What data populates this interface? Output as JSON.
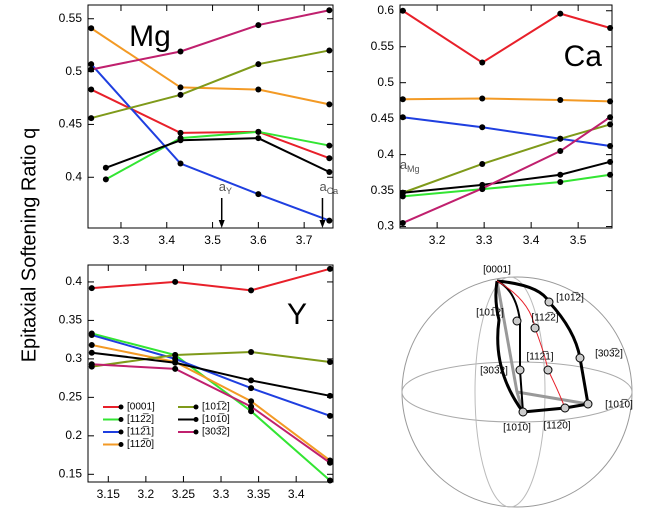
{
  "figure": {
    "ylabel": "Epitaxial  Softening Ratio q"
  },
  "chart_data": [
    {
      "type": "line",
      "label": "Mg",
      "xlim": [
        3.228,
        3.763
      ],
      "ylim": [
        0.352,
        0.563
      ],
      "xticks": [
        3.3,
        3.4,
        3.5,
        3.6,
        3.7
      ],
      "yticks": [
        0.4,
        0.45,
        0.5,
        0.55
      ],
      "legend": false,
      "annotations": [
        {
          "text": "a",
          "sub": "Y",
          "x": 3.52,
          "arrow": true
        },
        {
          "text": "a",
          "sub": "Ca",
          "x": 3.74,
          "arrow": true
        }
      ],
      "series": [
        {
          "name": "[0001]",
          "color": "#e8202a",
          "x": [
            3.235,
            3.43,
            3.6,
            3.755
          ],
          "values": [
            0.483,
            0.442,
            0.443,
            0.418
          ]
        },
        {
          "name": "[112̅2]",
          "color": "#33e533",
          "x": [
            3.267,
            3.43,
            3.6,
            3.755
          ],
          "values": [
            0.398,
            0.437,
            0.443,
            0.43
          ]
        },
        {
          "name": "[112̅1]",
          "color": "#1f3fe0",
          "x": [
            3.235,
            3.43,
            3.6,
            3.755
          ],
          "values": [
            0.507,
            0.413,
            0.384,
            0.359
          ]
        },
        {
          "name": "[112̅0]",
          "color": "#f39a25",
          "x": [
            3.235,
            3.43,
            3.6,
            3.755
          ],
          "values": [
            0.541,
            0.485,
            0.483,
            0.469
          ]
        },
        {
          "name": "[101̅2]",
          "color": "#7f9a1a",
          "x": [
            3.235,
            3.43,
            3.6,
            3.755
          ],
          "values": [
            0.456,
            0.478,
            0.507,
            0.52
          ]
        },
        {
          "name": "[101̅0]",
          "color": "#000000",
          "x": [
            3.267,
            3.43,
            3.6,
            3.755
          ],
          "values": [
            0.409,
            0.435,
            0.437,
            0.405
          ]
        },
        {
          "name": "[303̅2]",
          "color": "#c0206e",
          "x": [
            3.235,
            3.43,
            3.6,
            3.755
          ],
          "values": [
            0.502,
            0.519,
            0.544,
            0.558
          ]
        }
      ]
    },
    {
      "type": "line",
      "label": "Ca",
      "xlim": [
        3.121,
        3.572
      ],
      "ylim": [
        0.298,
        0.608
      ],
      "xticks": [
        3.2,
        3.3,
        3.4,
        3.5
      ],
      "yticks": [
        0.3,
        0.35,
        0.4,
        0.45,
        0.5,
        0.55,
        0.6
      ],
      "legend": false,
      "annotations": [
        {
          "text": "a",
          "sub": "Mg",
          "x": 3.127,
          "arrow": false
        }
      ],
      "series": [
        {
          "name": "[0001]",
          "color": "#e8202a",
          "x": [
            3.127,
            3.296,
            3.462,
            3.568
          ],
          "values": [
            0.6,
            0.528,
            0.596,
            0.576
          ]
        },
        {
          "name": "[112̅2]",
          "color": "#33e533",
          "x": [
            3.127,
            3.296,
            3.462,
            3.568
          ],
          "values": [
            0.342,
            0.352,
            0.362,
            0.372
          ]
        },
        {
          "name": "[112̅1]",
          "color": "#1f3fe0",
          "x": [
            3.127,
            3.296,
            3.462,
            3.568
          ],
          "values": [
            0.452,
            0.438,
            0.422,
            0.412
          ]
        },
        {
          "name": "[112̅0]",
          "color": "#f39a25",
          "x": [
            3.127,
            3.296,
            3.462,
            3.568
          ],
          "values": [
            0.477,
            0.478,
            0.476,
            0.474
          ]
        },
        {
          "name": "[101̅2]",
          "color": "#7f9a1a",
          "x": [
            3.127,
            3.296,
            3.462,
            3.568
          ],
          "values": [
            0.347,
            0.387,
            0.422,
            0.442
          ]
        },
        {
          "name": "[101̅0]",
          "color": "#000000",
          "x": [
            3.127,
            3.296,
            3.462,
            3.568
          ],
          "values": [
            0.347,
            0.358,
            0.372,
            0.39
          ]
        },
        {
          "name": "[303̅2]",
          "color": "#c0206e",
          "x": [
            3.127,
            3.296,
            3.462,
            3.568
          ],
          "values": [
            0.305,
            0.353,
            0.405,
            0.452
          ]
        }
      ]
    },
    {
      "type": "line",
      "label": "Y",
      "xlim": [
        3.123,
        3.449
      ],
      "ylim": [
        0.14,
        0.422
      ],
      "xticks": [
        3.15,
        3.2,
        3.25,
        3.3,
        3.35,
        3.4
      ],
      "yticks": [
        0.15,
        0.2,
        0.25,
        0.3,
        0.35,
        0.4
      ],
      "legend": true,
      "annotations": [],
      "series": [
        {
          "name": "[0001]",
          "color": "#e8202a",
          "x": [
            3.128,
            3.239,
            3.34,
            3.445
          ],
          "values": [
            0.392,
            0.4,
            0.389,
            0.417
          ]
        },
        {
          "name": "[112̅2]",
          "color": "#33e533",
          "x": [
            3.128,
            3.239,
            3.34,
            3.445
          ],
          "values": [
            0.333,
            0.305,
            0.232,
            0.142
          ]
        },
        {
          "name": "[112̅1]",
          "color": "#1f3fe0",
          "x": [
            3.128,
            3.239,
            3.34,
            3.445
          ],
          "values": [
            0.331,
            0.3,
            0.262,
            0.226
          ]
        },
        {
          "name": "[112̅0]",
          "color": "#f39a25",
          "x": [
            3.128,
            3.239,
            3.34,
            3.445
          ],
          "values": [
            0.318,
            0.296,
            0.245,
            0.168
          ]
        },
        {
          "name": "[101̅2]",
          "color": "#7f9a1a",
          "x": [
            3.128,
            3.239,
            3.34,
            3.445
          ],
          "values": [
            0.29,
            0.305,
            0.309,
            0.296
          ]
        },
        {
          "name": "[101̅0]",
          "color": "#000000",
          "x": [
            3.128,
            3.239,
            3.34,
            3.445
          ],
          "values": [
            0.308,
            0.295,
            0.272,
            0.252
          ]
        },
        {
          "name": "[303̅2]",
          "color": "#c0206e",
          "x": [
            3.128,
            3.239,
            3.34,
            3.445
          ],
          "values": [
            0.293,
            0.287,
            0.238,
            0.165
          ]
        }
      ]
    }
  ],
  "diagram": {
    "labels": [
      "[0001]",
      "[101̅2]",
      "[101̅2]",
      "[112̅2]",
      "[112̅1]",
      "[303̅2]",
      "[303̅2]",
      "[101̅0]",
      "[101̅0]",
      "[112̅0]"
    ]
  }
}
